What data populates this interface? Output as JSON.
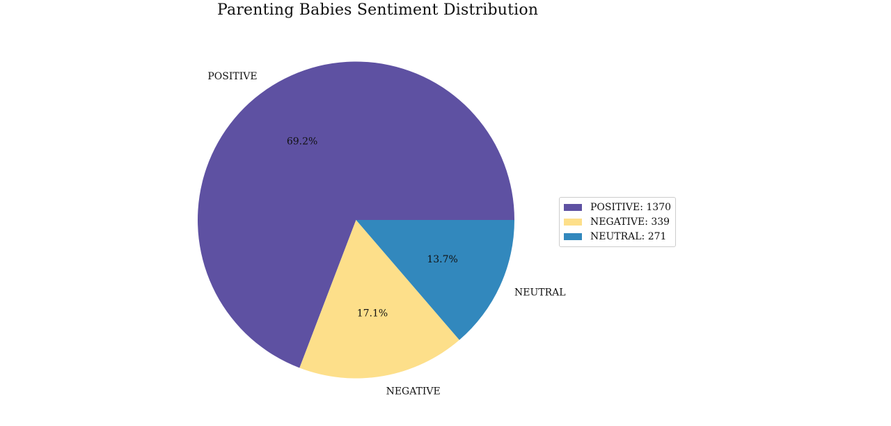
{
  "chart_data": {
    "type": "pie",
    "title": "Parenting Babies Sentiment Distribution",
    "slices": [
      {
        "label": "POSITIVE",
        "value": 1370,
        "percent_label": "69.2%",
        "legend_label": "POSITIVE: 1370",
        "color": "#5e51a2"
      },
      {
        "label": "NEGATIVE",
        "value": 339,
        "percent_label": "17.1%",
        "legend_label": "NEGATIVE: 339",
        "color": "#fddf8a"
      },
      {
        "label": "NEUTRAL",
        "value": 271,
        "percent_label": "13.7%",
        "legend_label": "NEUTRAL: 271",
        "color": "#3288bd"
      }
    ],
    "start_angle_deg": 0,
    "direction": "counterclockwise",
    "legend_placement": "center-right"
  }
}
